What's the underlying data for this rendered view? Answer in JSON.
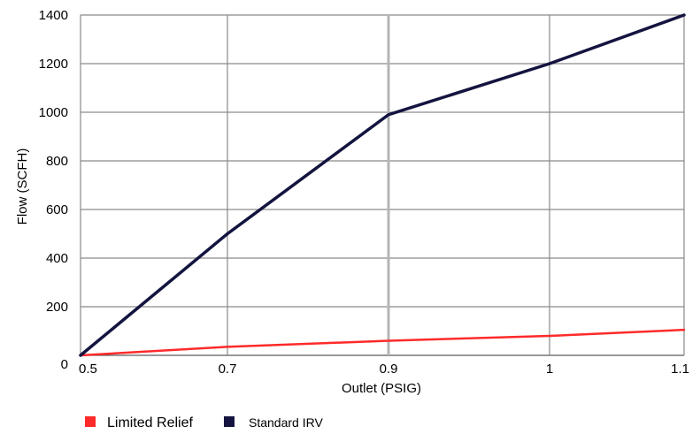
{
  "chart_data": {
    "type": "line",
    "title": "",
    "xlabel": "Outlet (PSIG)",
    "ylabel": "Flow (SCFH)",
    "x_ticks": [
      "0.5",
      "0.7",
      "0.9",
      "1",
      "1.1"
    ],
    "y_ticks": [
      "0",
      "200",
      "400",
      "600",
      "800",
      "1000",
      "1200",
      "1400"
    ],
    "ylim": [
      0,
      1400
    ],
    "grid": true,
    "legend_position": "bottom-left",
    "series": [
      {
        "name": "Limited Relief",
        "color": "#ff2a2a",
        "points": [
          {
            "x": "0.5",
            "y": 0
          },
          {
            "x": "0.7",
            "y": 35
          },
          {
            "x": "0.9",
            "y": 60
          },
          {
            "x": "1",
            "y": 80
          },
          {
            "x": "1.1",
            "y": 105
          }
        ]
      },
      {
        "name": "Standard IRV",
        "color": "#13143f",
        "points": [
          {
            "x": "0.5",
            "y": 0
          },
          {
            "x": "0.7",
            "y": 500
          },
          {
            "x": "0.9",
            "y": 990
          },
          {
            "x": "1",
            "y": 1200
          },
          {
            "x": "1.1",
            "y": 1400
          }
        ]
      }
    ]
  }
}
